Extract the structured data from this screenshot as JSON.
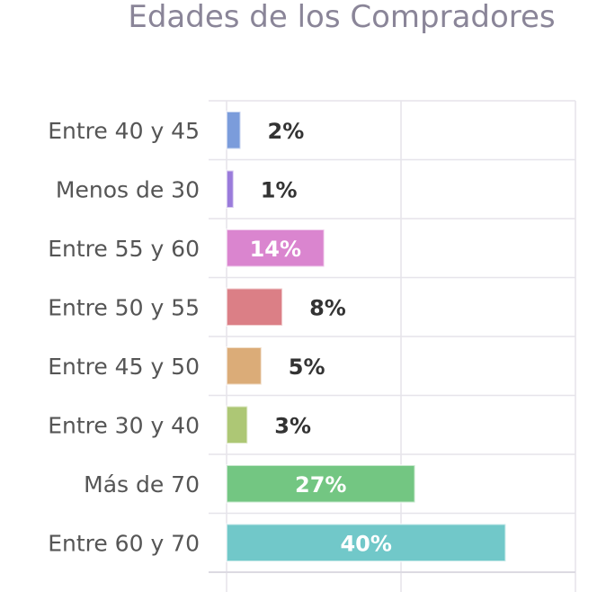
{
  "chart_data": {
    "type": "bar",
    "orientation": "horizontal",
    "title": "Edades de los Compradores",
    "xlabel": "",
    "ylabel": "",
    "xlim": [
      0,
      50
    ],
    "grid": true,
    "legend": "none",
    "categories": [
      "Entre 40 y 45",
      "Menos de 30",
      "Entre 55 y 60",
      "Entre 50 y 55",
      "Entre 45 y 50",
      "Entre 30 y 40",
      "Más de 70",
      "Entre 60 y 70"
    ],
    "values": [
      2,
      1,
      14,
      8,
      5,
      3,
      27,
      40
    ],
    "data_labels": [
      "2%",
      "1%",
      "14%",
      "8%",
      "5%",
      "3%",
      "27%",
      "40%"
    ],
    "colors": [
      "#7b9cdb",
      "#9a7bdb",
      "#da85cf",
      "#db7f86",
      "#dbac78",
      "#adc775",
      "#73c682",
      "#71c8c9"
    ],
    "label_colors": {
      "inside": "#ffffff",
      "outside": "#333333"
    }
  }
}
